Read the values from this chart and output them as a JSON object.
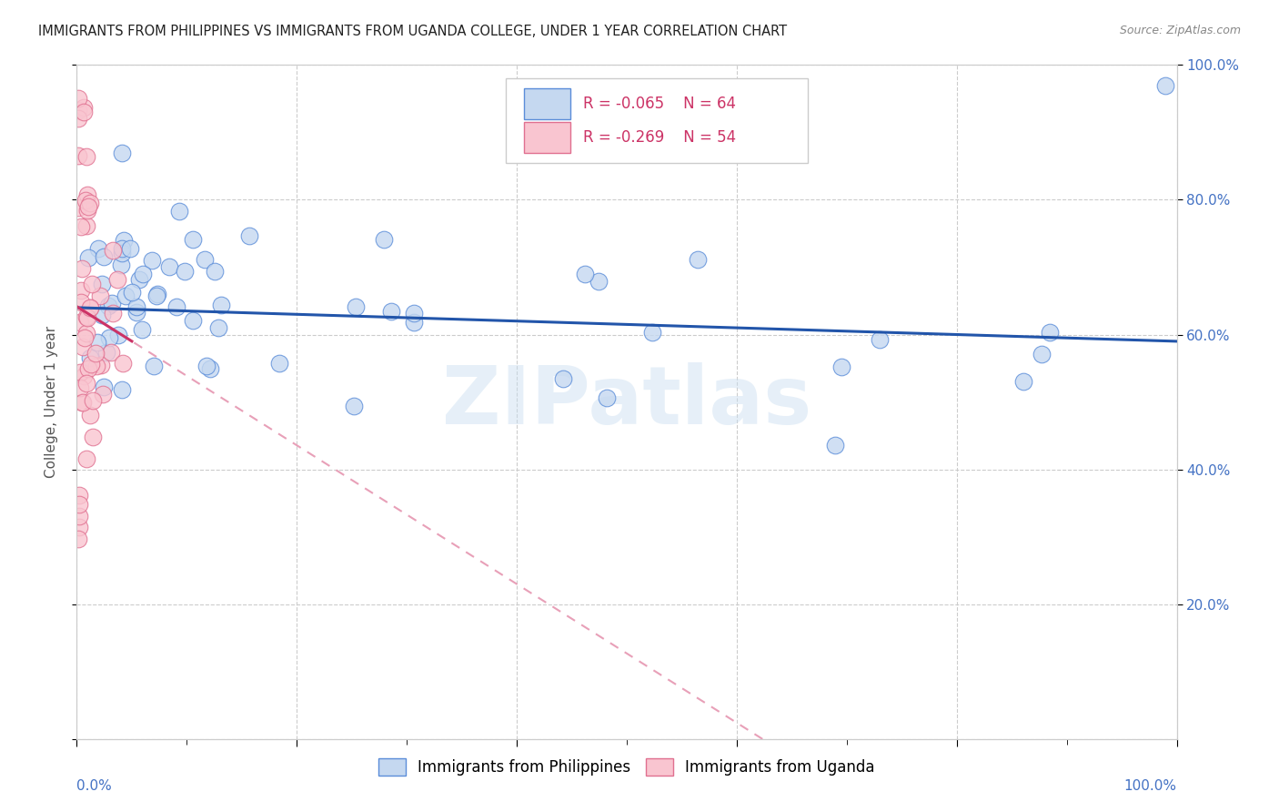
{
  "title": "IMMIGRANTS FROM PHILIPPINES VS IMMIGRANTS FROM UGANDA COLLEGE, UNDER 1 YEAR CORRELATION CHART",
  "source": "Source: ZipAtlas.com",
  "ylabel": "College, Under 1 year",
  "watermark": "ZIPatlas",
  "legend_r1": "-0.065",
  "legend_n1": "64",
  "legend_r2": "-0.269",
  "legend_n2": "54",
  "color_philippines_fill": "#c5d8f0",
  "color_philippines_edge": "#5b8dd9",
  "color_uganda_fill": "#f9c5d0",
  "color_uganda_edge": "#e07090",
  "color_phil_line": "#2255aa",
  "color_uganda_line_solid": "#cc3366",
  "color_uganda_line_dash": "#e8a0b8",
  "grid_color": "#cccccc",
  "tick_color": "#4472c4",
  "title_color": "#222222",
  "source_color": "#888888",
  "legend_text_color": "#cc3366",
  "background_color": "#ffffff",
  "n_philippines": 64,
  "n_uganda": 54,
  "R_philippines": -0.065,
  "R_uganda": -0.269,
  "xlim": [
    0.0,
    1.0
  ],
  "ylim": [
    0.0,
    1.0
  ],
  "label_philippines": "Immigrants from Philippines",
  "label_uganda": "Immigrants from Uganda"
}
